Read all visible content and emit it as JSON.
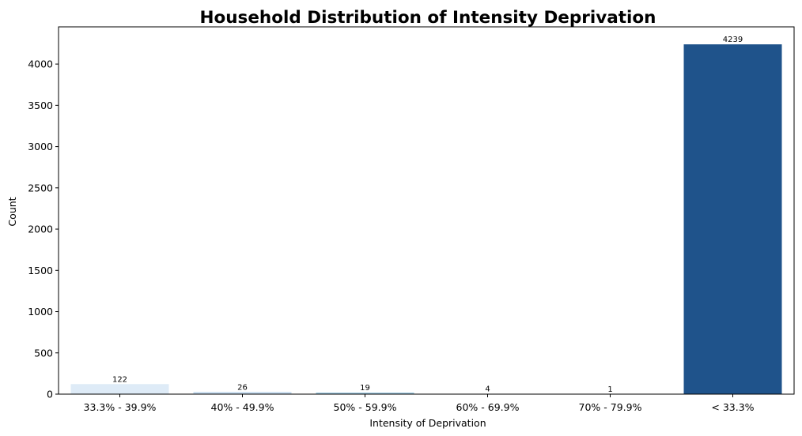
{
  "chart_data": {
    "type": "bar",
    "title": "Household Distribution of Intensity Deprivation",
    "xlabel": "Intensity of Deprivation",
    "ylabel": "Count",
    "categories": [
      "33.3% - 39.9%",
      "40% - 49.9%",
      "50% - 59.9%",
      "60% - 69.9%",
      "70% - 79.9%",
      "< 33.3%"
    ],
    "values": [
      122,
      26,
      19,
      4,
      1,
      4239
    ],
    "data_labels": [
      "122",
      "26",
      "19",
      "4",
      "1",
      "4239"
    ],
    "bar_colors": [
      "#deebf7",
      "#c6dbef",
      "#9ecae1",
      "#3a7abf",
      "#2a66a9",
      "#1f538b"
    ],
    "yticks": [
      0,
      500,
      1000,
      1500,
      2000,
      2500,
      3000,
      3500,
      4000
    ],
    "ytick_labels": [
      "0",
      "500",
      "1000",
      "1500",
      "2000",
      "2500",
      "3000",
      "3500",
      "4000"
    ],
    "ylim": [
      0,
      4450.95
    ],
    "grid": false,
    "legend": "none"
  }
}
